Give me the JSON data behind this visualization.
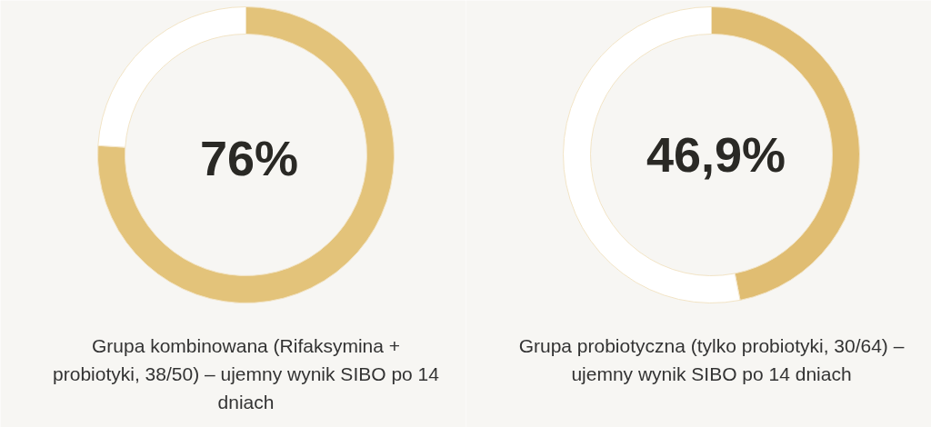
{
  "chart_data": [
    {
      "type": "donut",
      "categories": [
        null,
        null
      ],
      "values": [
        76,
        24
      ],
      "colors": [
        "#e3c37a",
        "#ffffff"
      ],
      "value_labels": [
        "76%",
        null
      ],
      "annotations": [
        "Grupa kombinowana (Rifaksymina + probiotyki, 38/50) – ujemny wynik SIBO po 14 dniach"
      ]
    },
    {
      "type": "donut",
      "categories": [
        null,
        null
      ],
      "values": [
        46.9,
        53.1
      ],
      "colors": [
        "#e0bd72",
        "#ffffff"
      ],
      "value_labels": [
        "46,9%",
        null
      ],
      "annotations": [
        "Grupa probiotyczna (tylko probiotyki, 30/64) – ujemny wynik SIBO po 14 dniach"
      ]
    }
  ]
}
